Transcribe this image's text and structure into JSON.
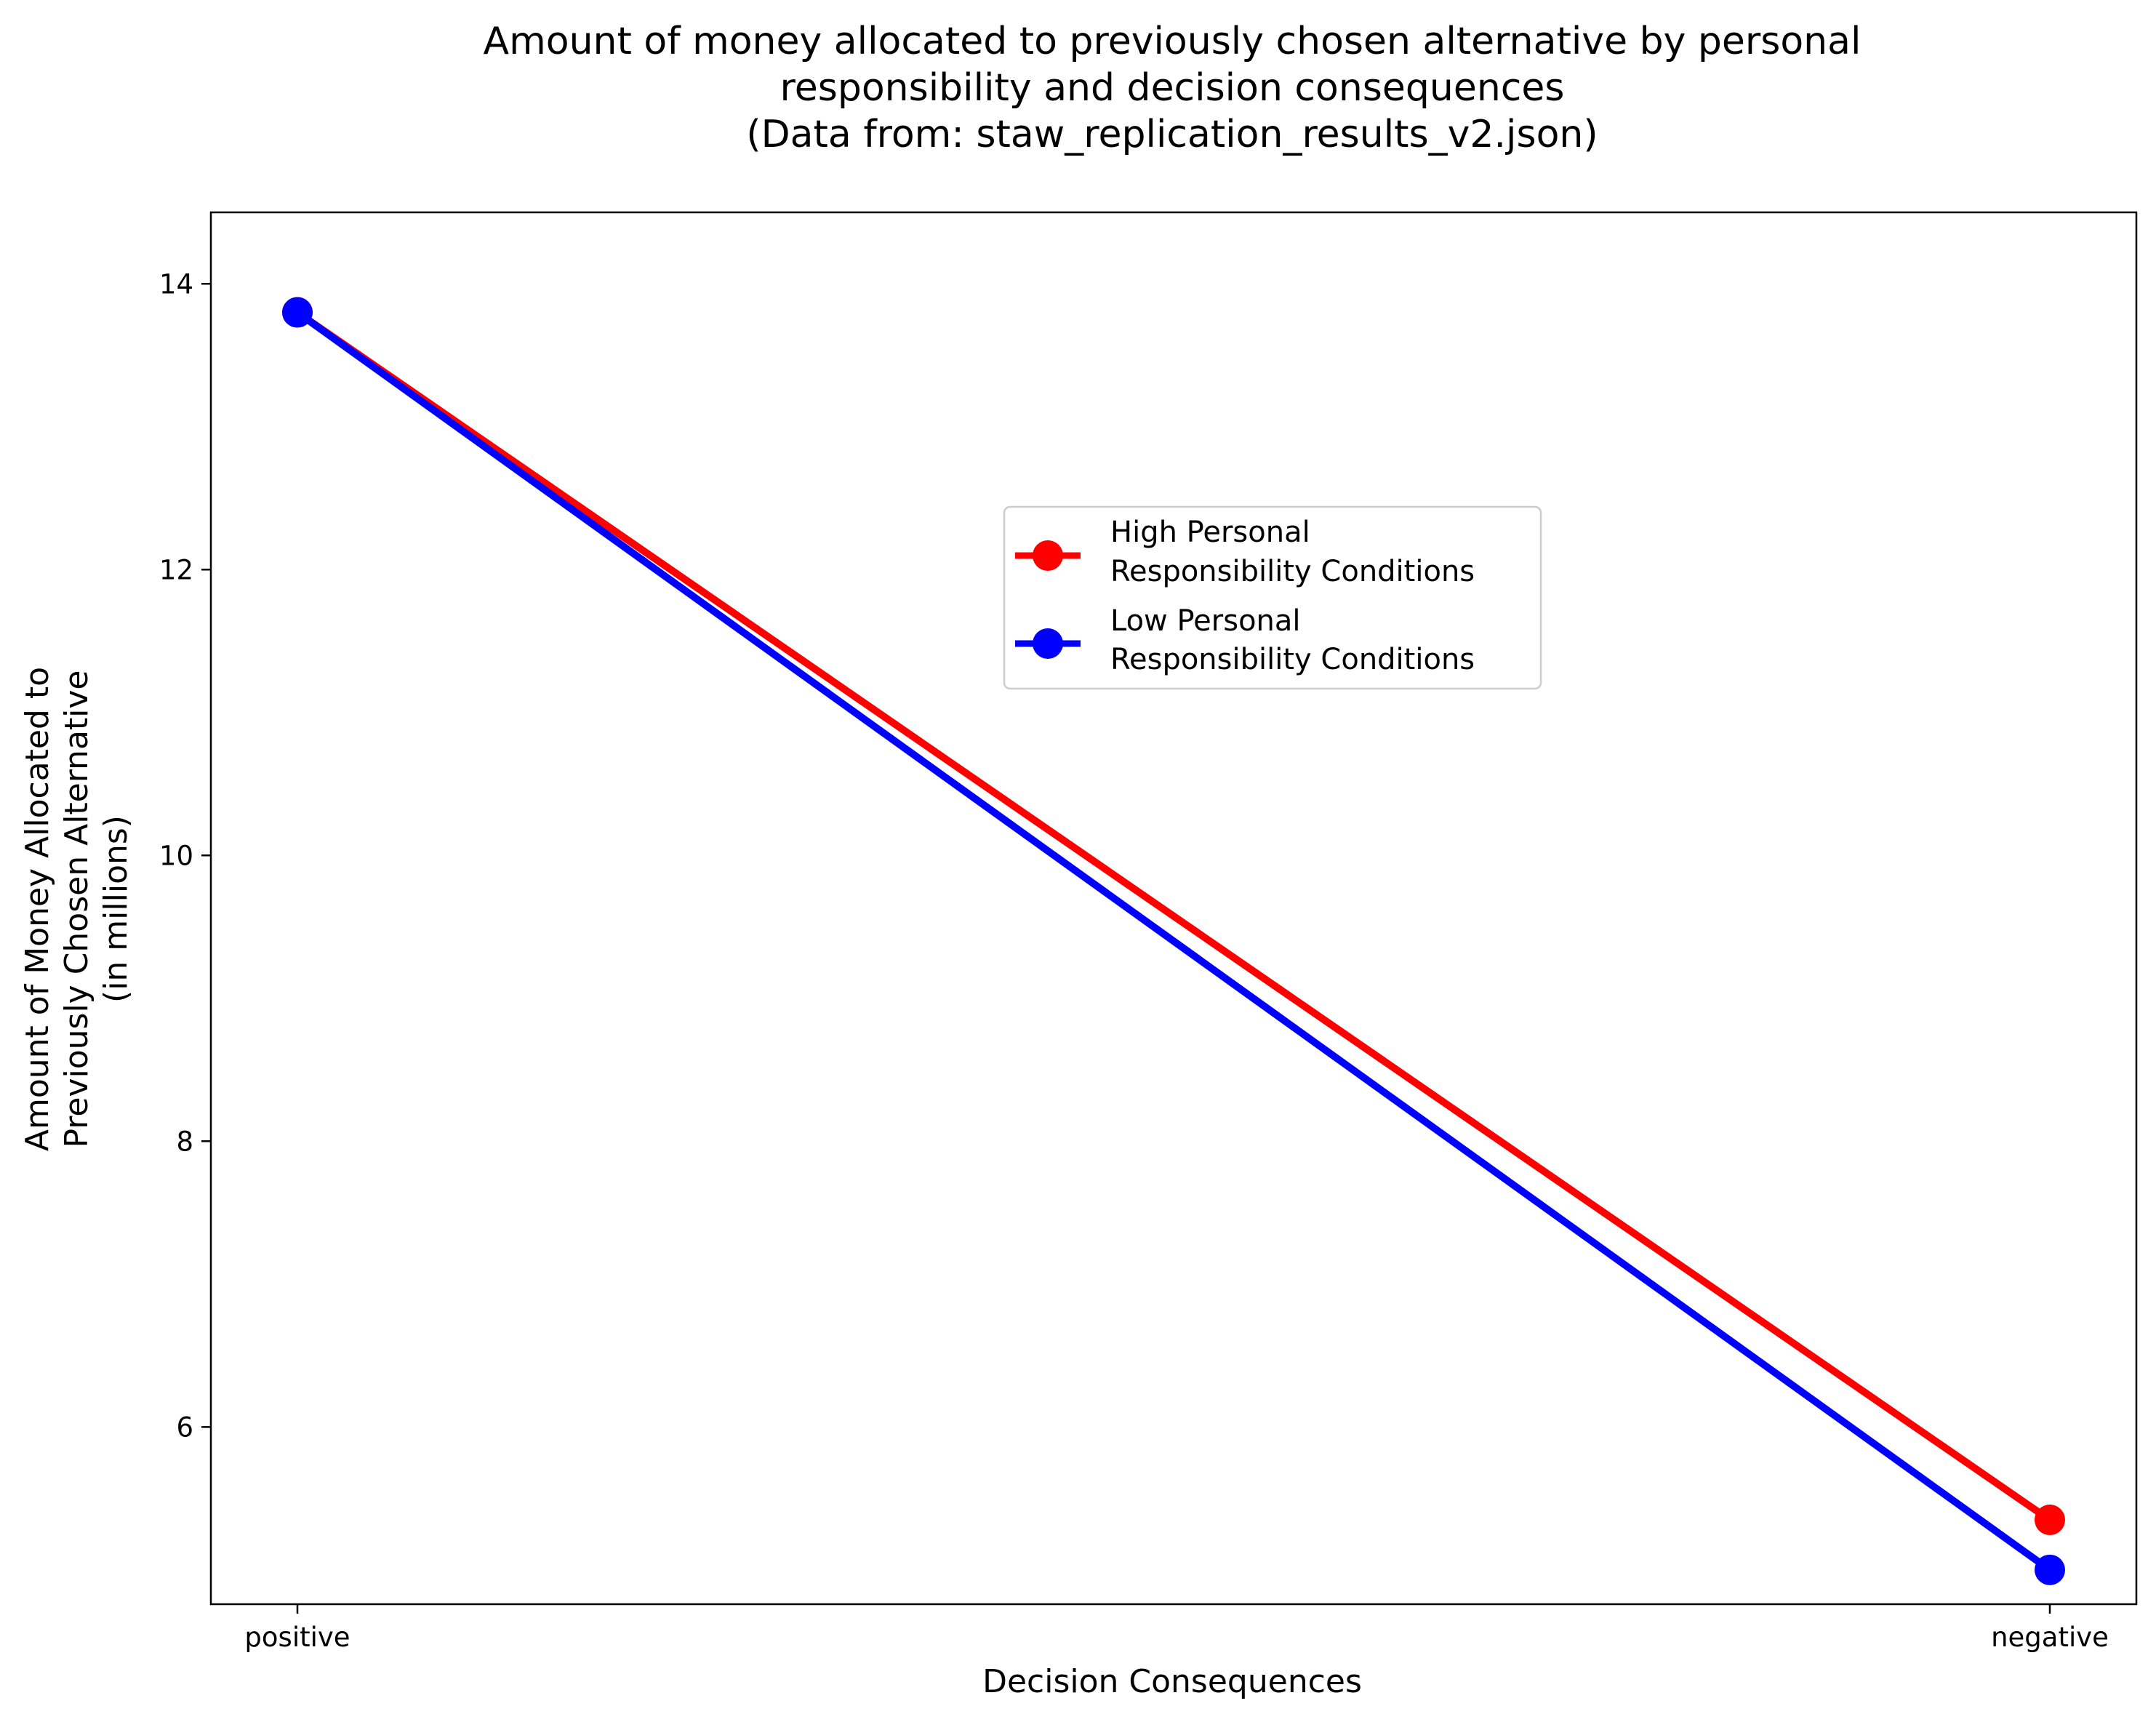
{
  "chart_data": {
    "type": "line",
    "title_lines": [
      "Amount of money allocated to previously chosen alternative by personal",
      "responsibility and decision consequences",
      "(Data from: staw_replication_results_v2.json)"
    ],
    "xlabel": "Decision Consequences",
    "ylabel_lines": [
      "Amount of Money Allocated to",
      "Previously Chosen Alternative",
      "(in millions)"
    ],
    "categories": [
      "positive",
      "negative"
    ],
    "yticks": [
      6,
      8,
      10,
      12,
      14
    ],
    "ylim": [
      4.76,
      14.5
    ],
    "grid": false,
    "legend_position": "upper-center-right",
    "series": [
      {
        "name_lines": [
          "High Personal",
          "Responsibility Conditions"
        ],
        "values": [
          13.8,
          5.35
        ],
        "color": "#ff0000"
      },
      {
        "name_lines": [
          "Low Personal",
          "Responsibility Conditions"
        ],
        "values": [
          13.8,
          5.0
        ],
        "color": "#0000ff"
      }
    ]
  }
}
